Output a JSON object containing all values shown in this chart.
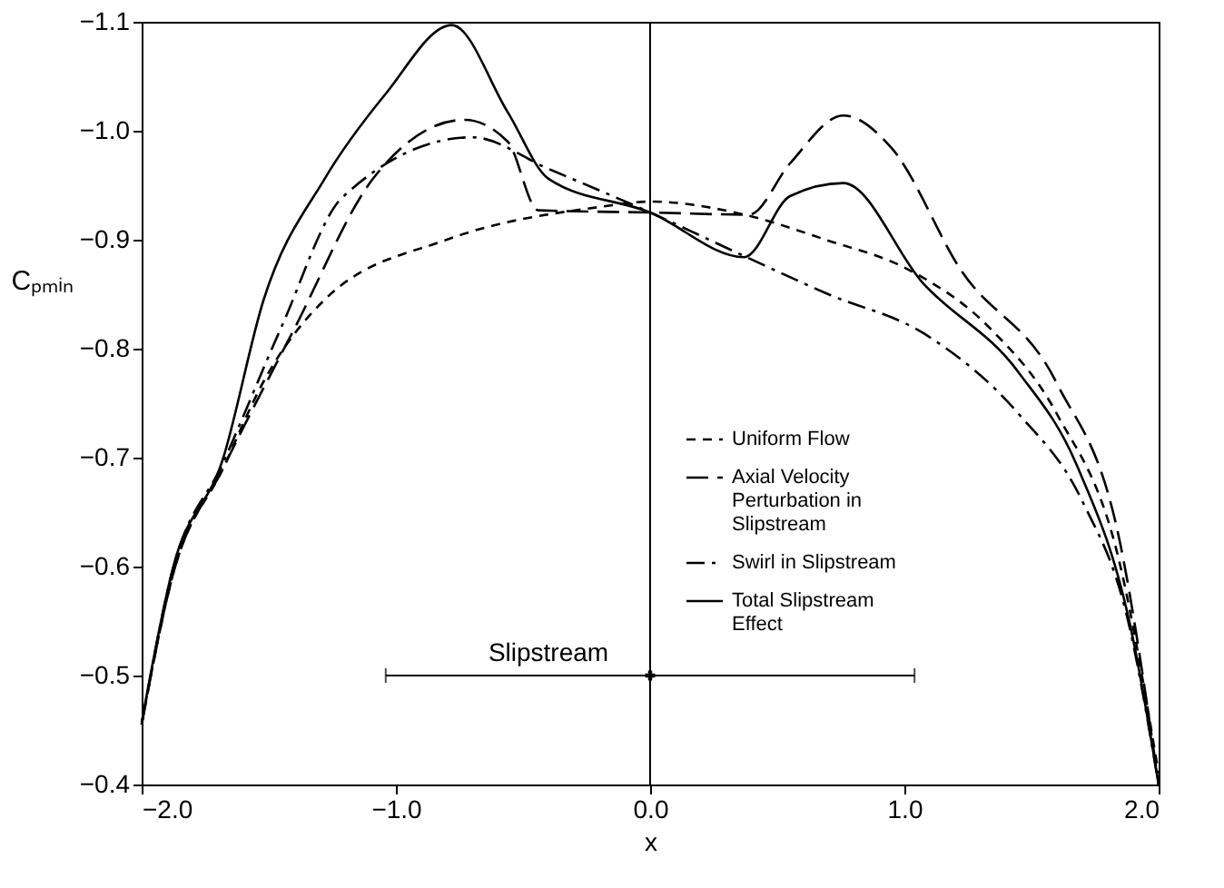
{
  "chart_data": {
    "type": "line",
    "xlabel": "x",
    "ylabel": "Cₚₘᵢₙ",
    "xlim": [
      -2.0,
      2.0
    ],
    "xticks": [
      {
        "value": -2.0,
        "label": "−2.0"
      },
      {
        "value": -1.0,
        "label": "−1.0"
      },
      {
        "value": 0.0,
        "label": "0.0"
      },
      {
        "value": 1.0,
        "label": "1.0"
      },
      {
        "value": 2.0,
        "label": "2.0"
      }
    ],
    "ylim": [
      -0.4,
      -1.1
    ],
    "yticks": [
      {
        "value": -1.1,
        "label": "−1.1"
      },
      {
        "value": -1.0,
        "label": "−1.0"
      },
      {
        "value": -0.9,
        "label": "−0.9"
      },
      {
        "value": -0.8,
        "label": "−0.8"
      },
      {
        "value": -0.7,
        "label": "−0.7"
      },
      {
        "value": -0.6,
        "label": "−0.6"
      },
      {
        "value": -0.5,
        "label": "−0.5"
      },
      {
        "value": -0.4,
        "label": "−0.4"
      }
    ],
    "grid": false,
    "legend": "center",
    "marker": "none",
    "series": [
      {
        "name": "Uniform Flow",
        "color": "#000000",
        "line_style": "dashed",
        "x": [
          -2.0,
          -1.88,
          -1.68,
          -1.52,
          -1.28,
          -0.8,
          -0.2,
          0.0,
          0.37,
          0.69,
          1.02,
          1.34,
          1.6,
          1.85,
          2.0
        ],
        "values": [
          -0.455,
          -0.59,
          -0.69,
          -0.77,
          -0.845,
          -0.9,
          -0.93,
          -0.935,
          -0.923,
          -0.9,
          -0.872,
          -0.818,
          -0.74,
          -0.6,
          -0.41
        ]
      },
      {
        "name": "Axial Velocity Perturbation in Slipstream",
        "color": "#000000",
        "line_style": "longdash",
        "x": [
          -2.0,
          -1.88,
          -1.68,
          -1.4,
          -1.09,
          -0.73,
          -0.56,
          -0.44,
          0.0,
          0.39,
          0.55,
          0.76,
          0.95,
          1.22,
          1.6,
          1.85,
          2.0
        ],
        "values": [
          -0.455,
          -0.59,
          -0.69,
          -0.818,
          -0.956,
          -1.01,
          -0.99,
          -0.927,
          -0.925,
          -0.923,
          -0.97,
          -1.014,
          -0.984,
          -0.873,
          -0.768,
          -0.62,
          -0.4
        ]
      },
      {
        "name": "Swirl in Slipstream",
        "color": "#000000",
        "line_style": "dashdot",
        "x": [
          -2.0,
          -1.88,
          -1.68,
          -1.45,
          -1.21,
          -0.7,
          -0.4,
          0.0,
          0.37,
          0.69,
          1.09,
          1.45,
          1.7,
          1.88,
          2.0
        ],
        "values": [
          -0.455,
          -0.595,
          -0.695,
          -0.82,
          -0.939,
          -0.994,
          -0.965,
          -0.925,
          -0.885,
          -0.851,
          -0.812,
          -0.74,
          -0.66,
          -0.55,
          -0.4
        ]
      },
      {
        "name": "Total Slipstream Effect",
        "color": "#000000",
        "line_style": "solid",
        "x": [
          -2.0,
          -1.88,
          -1.68,
          -1.52,
          -1.28,
          -1.04,
          -0.78,
          -0.56,
          -0.4,
          0.0,
          0.37,
          0.55,
          0.76,
          1.07,
          1.45,
          1.68,
          1.9,
          2.0
        ],
        "values": [
          -0.457,
          -0.596,
          -0.699,
          -0.845,
          -0.956,
          -1.034,
          -1.097,
          -1.017,
          -0.956,
          -0.925,
          -0.884,
          -0.94,
          -0.952,
          -0.861,
          -0.778,
          -0.692,
          -0.533,
          -0.4
        ]
      },
      {
        "type": "scatter",
        "color": "#000000",
        "marker": "cross",
        "x": [
          0.0
        ],
        "values": [
          -0.5
        ],
        "xerrors": [
          1.04
        ]
      }
    ],
    "ref_lines": [
      {
        "axis": "x",
        "value": 0.0
      }
    ],
    "annotations": [
      {
        "text": "Slipstream",
        "x": -0.4,
        "y": -0.5
      }
    ]
  }
}
